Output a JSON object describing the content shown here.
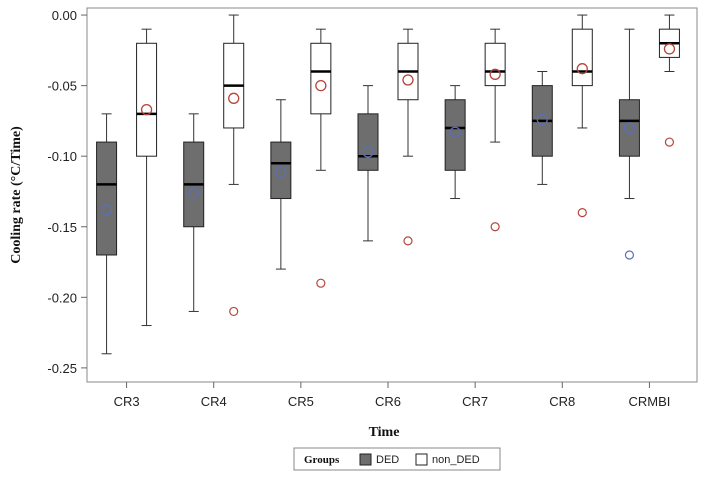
{
  "chart_data": {
    "type": "box",
    "xlabel": "Time",
    "ylabel": "Cooling rate (°C/Time)",
    "ylim": [
      -0.26,
      0.005
    ],
    "yticks": [
      0.0,
      -0.05,
      -0.1,
      -0.15,
      -0.2,
      -0.25
    ],
    "ytick_labels": [
      "0.00",
      "-0.05",
      "-0.10",
      "-0.15",
      "-0.20",
      "-0.25"
    ],
    "categories": [
      "CR3",
      "CR4",
      "CR5",
      "CR6",
      "CR7",
      "CR8",
      "CRMBI"
    ],
    "legend": {
      "title": "Groups",
      "placement": "bottom",
      "entries": [
        "DED",
        "non_DED"
      ]
    },
    "colors": {
      "DED_fill": "#6e6e6e",
      "non_DED_fill": "#ffffff",
      "DED_mean_marker": "#5b6fb5",
      "non_DED_mean_marker": "#b5453a",
      "outlier_DED": "#5b6fb5",
      "outlier_non_DED": "#b5453a"
    },
    "series": [
      {
        "name": "DED",
        "boxes": [
          {
            "category": "CR3",
            "whisker_low": -0.24,
            "q1": -0.17,
            "median": -0.12,
            "q3": -0.09,
            "whisker_high": -0.07,
            "mean": -0.138,
            "outliers": []
          },
          {
            "category": "CR4",
            "whisker_low": -0.21,
            "q1": -0.15,
            "median": -0.12,
            "q3": -0.09,
            "whisker_high": -0.07,
            "mean": -0.126,
            "outliers": []
          },
          {
            "category": "CR5",
            "whisker_low": -0.18,
            "q1": -0.13,
            "median": -0.105,
            "q3": -0.09,
            "whisker_high": -0.06,
            "mean": -0.111,
            "outliers": []
          },
          {
            "category": "CR6",
            "whisker_low": -0.16,
            "q1": -0.11,
            "median": -0.1,
            "q3": -0.07,
            "whisker_high": -0.05,
            "mean": -0.097,
            "outliers": []
          },
          {
            "category": "CR7",
            "whisker_low": -0.13,
            "q1": -0.11,
            "median": -0.08,
            "q3": -0.06,
            "whisker_high": -0.05,
            "mean": -0.083,
            "outliers": []
          },
          {
            "category": "CR8",
            "whisker_low": -0.12,
            "q1": -0.1,
            "median": -0.075,
            "q3": -0.05,
            "whisker_high": -0.04,
            "mean": -0.074,
            "outliers": []
          },
          {
            "category": "CRMBI",
            "whisker_low": -0.13,
            "q1": -0.1,
            "median": -0.075,
            "q3": -0.06,
            "whisker_high": -0.01,
            "mean": -0.08,
            "outliers": [
              -0.17
            ]
          }
        ]
      },
      {
        "name": "non_DED",
        "boxes": [
          {
            "category": "CR3",
            "whisker_low": -0.22,
            "q1": -0.1,
            "median": -0.07,
            "q3": -0.02,
            "whisker_high": -0.01,
            "mean": -0.067,
            "outliers": []
          },
          {
            "category": "CR4",
            "whisker_low": -0.12,
            "q1": -0.08,
            "median": -0.05,
            "q3": -0.02,
            "whisker_high": 0.0,
            "mean": -0.059,
            "outliers": [
              -0.21
            ]
          },
          {
            "category": "CR5",
            "whisker_low": -0.11,
            "q1": -0.07,
            "median": -0.04,
            "q3": -0.02,
            "whisker_high": -0.01,
            "mean": -0.05,
            "outliers": [
              -0.19
            ]
          },
          {
            "category": "CR6",
            "whisker_low": -0.1,
            "q1": -0.06,
            "median": -0.04,
            "q3": -0.02,
            "whisker_high": -0.01,
            "mean": -0.046,
            "outliers": [
              -0.16
            ]
          },
          {
            "category": "CR7",
            "whisker_low": -0.09,
            "q1": -0.05,
            "median": -0.04,
            "q3": -0.02,
            "whisker_high": -0.01,
            "mean": -0.042,
            "outliers": [
              -0.15
            ]
          },
          {
            "category": "CR8",
            "whisker_low": -0.08,
            "q1": -0.05,
            "median": -0.04,
            "q3": -0.01,
            "whisker_high": 0.0,
            "mean": -0.038,
            "outliers": [
              -0.14
            ]
          },
          {
            "category": "CRMBI",
            "whisker_low": -0.04,
            "q1": -0.03,
            "median": -0.02,
            "q3": -0.01,
            "whisker_high": 0.0,
            "mean": -0.024,
            "outliers": [
              -0.09
            ]
          }
        ]
      }
    ]
  }
}
